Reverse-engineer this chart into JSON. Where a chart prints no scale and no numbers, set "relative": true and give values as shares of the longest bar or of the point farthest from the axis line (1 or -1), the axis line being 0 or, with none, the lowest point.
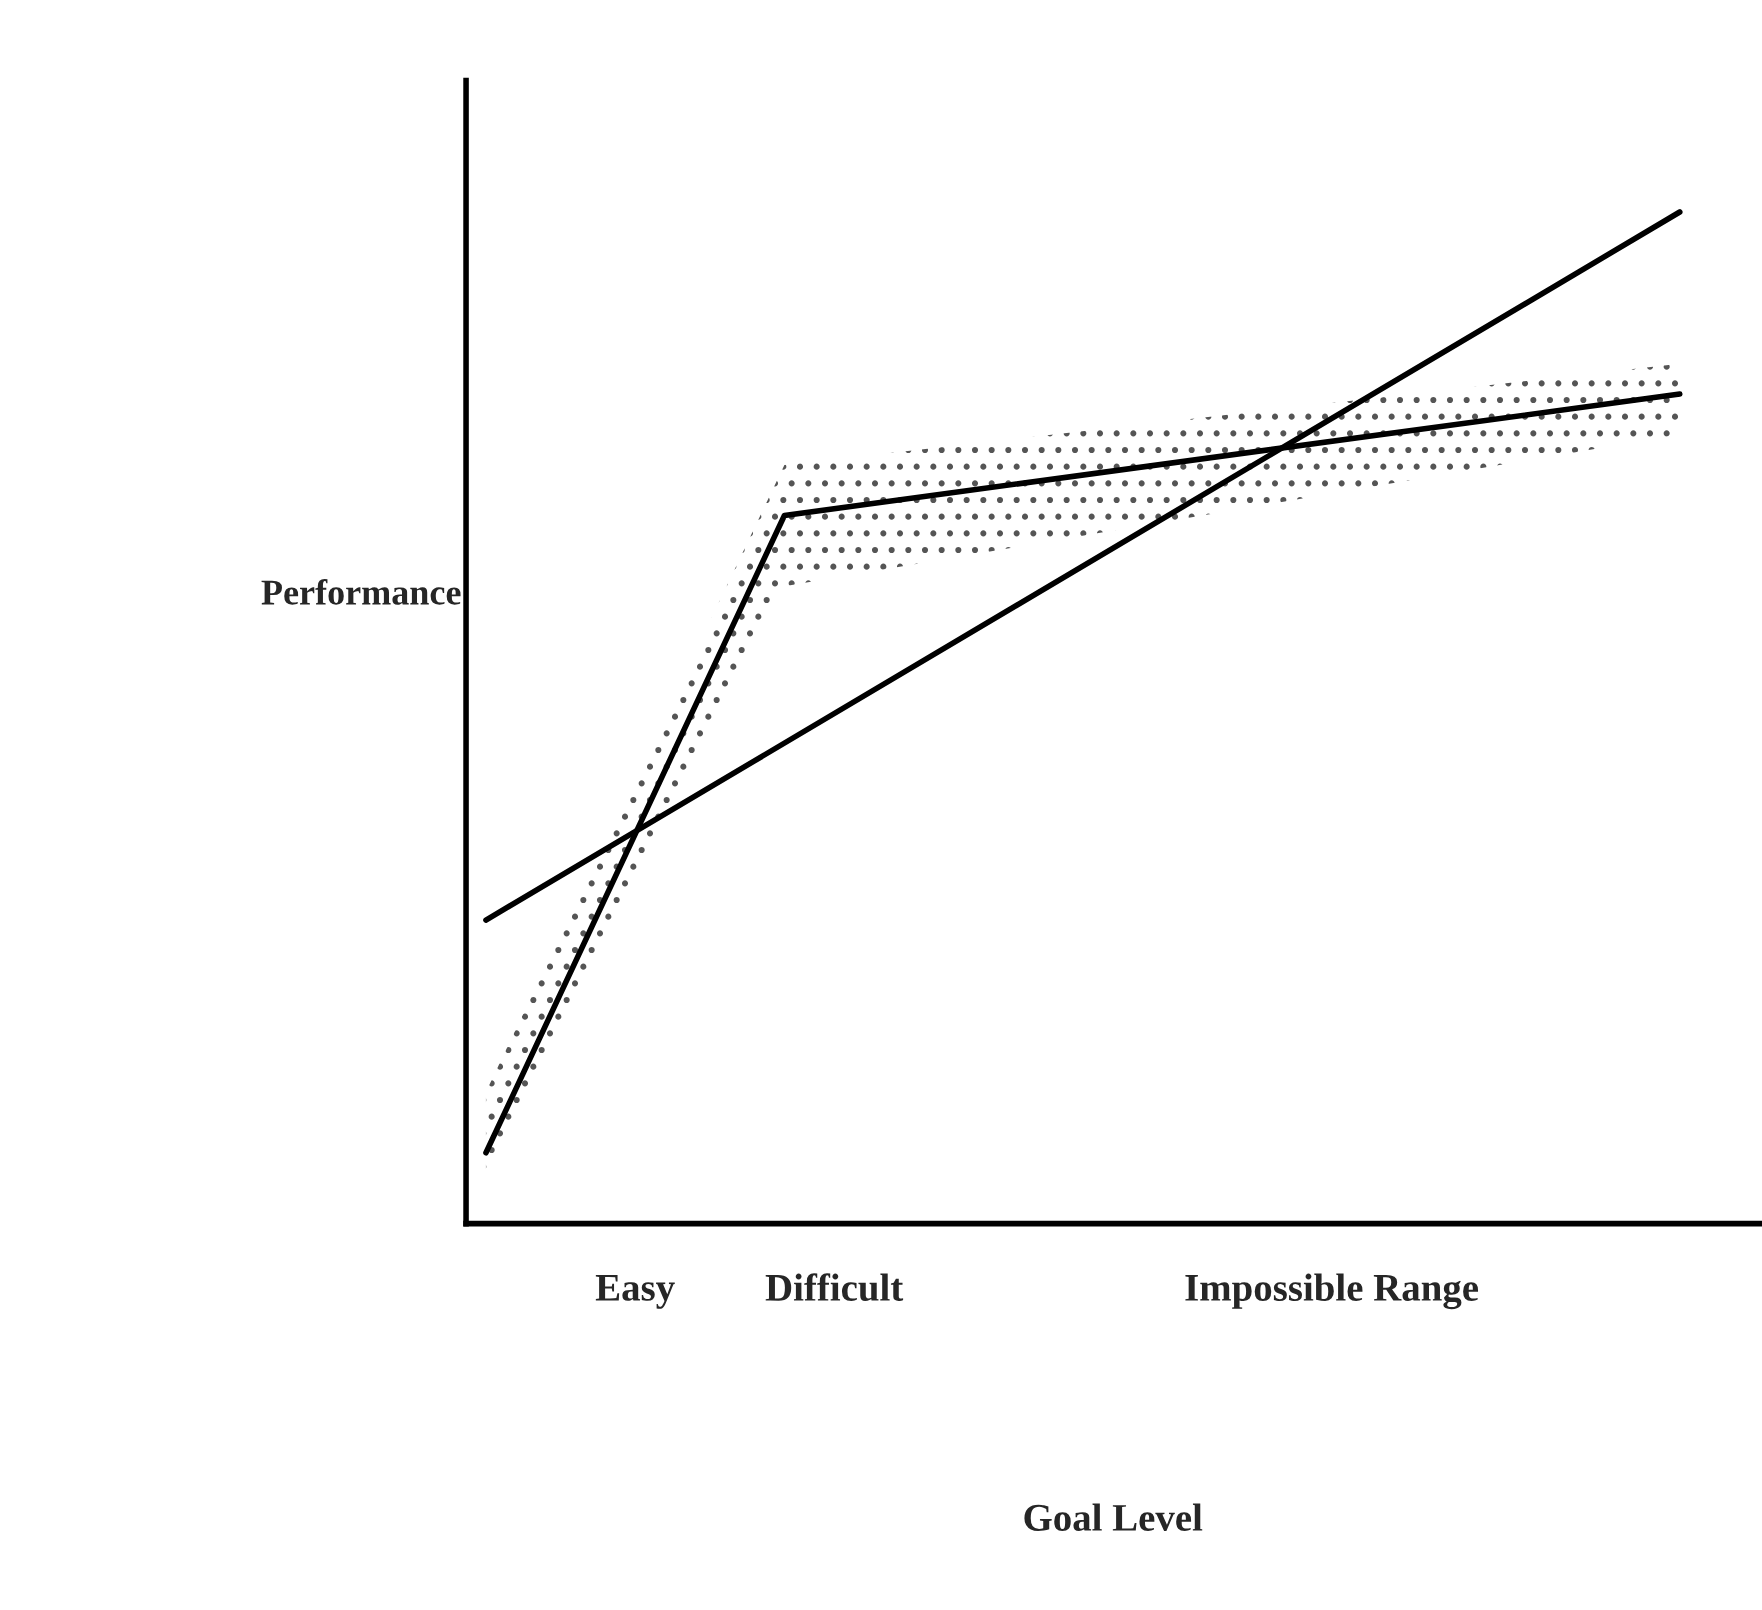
{
  "chart_data": {
    "type": "line",
    "relative": true,
    "xlabel": "Goal Level",
    "ylabel": "Performance",
    "categories": [
      null,
      null,
      null,
      "Easy",
      null,
      null,
      null,
      "Difficult",
      null,
      null,
      null,
      null,
      null,
      null,
      null,
      null,
      null,
      "Impossible Range",
      null,
      null,
      null,
      null,
      null,
      null,
      null
    ],
    "series": [
      {
        "color": "#000000",
        "values": [
          0.3,
          null,
          null,
          null,
          null,
          null,
          null,
          null,
          null,
          null,
          null,
          null,
          null,
          null,
          null,
          null,
          null,
          null,
          null,
          null,
          null,
          null,
          null,
          null,
          1.0
        ]
      },
      {
        "color": "#000000",
        "values": [
          0.07,
          null,
          null,
          null,
          null,
          null,
          0.7,
          null,
          null,
          null,
          null,
          null,
          null,
          null,
          null,
          null,
          null,
          null,
          null,
          null,
          null,
          null,
          null,
          null,
          0.82
        ],
        "lower": [
          0.05,
          null,
          null,
          null,
          null,
          null,
          0.63,
          null,
          null,
          null,
          null,
          null,
          null,
          null,
          null,
          null,
          null,
          null,
          null,
          null,
          null,
          null,
          null,
          null,
          0.78
        ],
        "upper": [
          0.13,
          null,
          null,
          null,
          null,
          null,
          0.75,
          null,
          null,
          null,
          null,
          null,
          null,
          null,
          null,
          null,
          null,
          null,
          null,
          null,
          null,
          null,
          null,
          null,
          0.85
        ]
      }
    ],
    "grid": false,
    "legend": false,
    "marker": "none",
    "line_style": "solid"
  }
}
